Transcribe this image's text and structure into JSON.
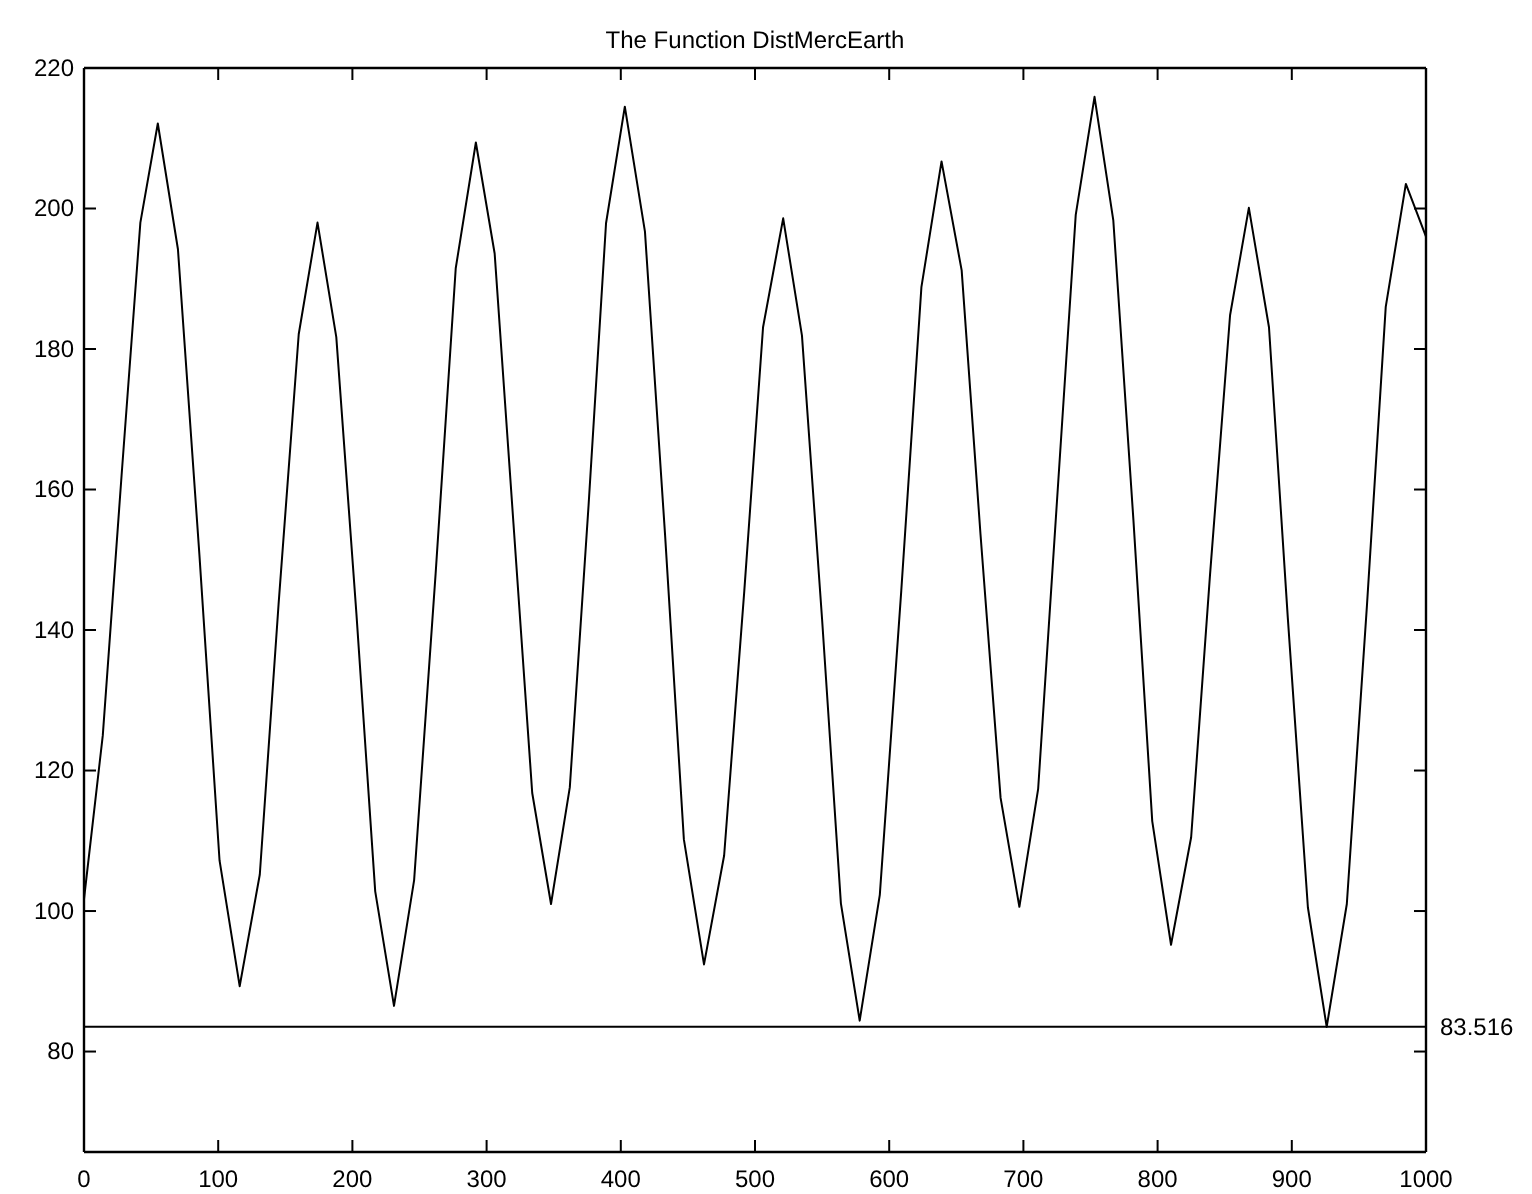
{
  "chart_data": {
    "type": "line",
    "title": "The Function DistMercEarth",
    "x": [
      0,
      14,
      28,
      42,
      55,
      70,
      86,
      101,
      116,
      131,
      145,
      160,
      174,
      188,
      203,
      217,
      231,
      246,
      262,
      277,
      292,
      306,
      320,
      334,
      348,
      362,
      376,
      389,
      403,
      418,
      433,
      447,
      462,
      477,
      492,
      506,
      521,
      535,
      550,
      564,
      578,
      593,
      609,
      624,
      639,
      654,
      668,
      683,
      697,
      711,
      725,
      739,
      753,
      767,
      782,
      796,
      810,
      825,
      839,
      854,
      868,
      883,
      897,
      912,
      926,
      941,
      956,
      970,
      985,
      1000
    ],
    "series": [
      {
        "color": "#000000",
        "values": [
          101.7,
          125,
          162,
          198,
          212.1,
          194.2,
          150.7,
          107.2,
          89.3,
          105.2,
          143.7,
          182.1,
          198,
          181.7,
          142.3,
          102.8,
          86.5,
          104.4,
          148,
          191.5,
          209.4,
          193.6,
          155.2,
          116.8,
          101,
          117.6,
          157.8,
          197.9,
          214.5,
          196.7,
          153.5,
          110.2,
          92.4,
          107.9,
          145.5,
          183.1,
          198.6,
          181.9,
          141.5,
          101.1,
          84.4,
          102.3,
          145.6,
          188.8,
          206.7,
          191.2,
          153.7,
          116.1,
          100.6,
          117.4,
          158.3,
          199.1,
          215.9,
          198.3,
          155.6,
          112.8,
          95.2,
          110.5,
          147.7,
          184.8,
          200.1,
          183.1,
          141.8,
          100.5,
          83.5,
          101,
          143.5,
          186,
          203.5,
          196
        ]
      }
    ],
    "xlim": [
      0,
      1000
    ],
    "xticks": [
      0,
      100,
      200,
      300,
      400,
      500,
      600,
      700,
      800,
      900,
      1000
    ],
    "ylim": [
      65.7,
      220
    ],
    "yticks": [
      80,
      100,
      120,
      140,
      160,
      180,
      200,
      220
    ],
    "ref_lines": [
      {
        "axis": "y",
        "value": 83.516,
        "label": "83.516",
        "color": "#000000"
      }
    ],
    "marker": "none",
    "line_style": "solid"
  }
}
